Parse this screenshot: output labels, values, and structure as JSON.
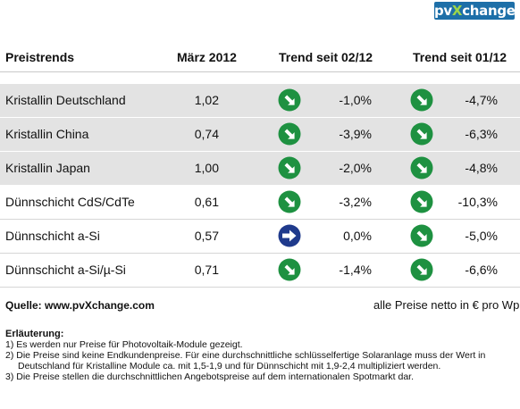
{
  "brand": {
    "logo_pre": "pv",
    "logo_x": "X",
    "logo_post": "change"
  },
  "header": {
    "col_name": "Preistrends",
    "col_price": "März 2012",
    "col_trend1": "Trend seit 02/12",
    "col_trend2": "Trend seit 01/12"
  },
  "rows": [
    {
      "name": "Kristallin Deutschland",
      "price": "1,02",
      "trend1_icon": "arrow-down-right-icon",
      "trend1": "-1,0%",
      "trend2_icon": "arrow-down-right-icon",
      "trend2": "-4,7%"
    },
    {
      "name": "Kristallin China",
      "price": "0,74",
      "trend1_icon": "arrow-down-right-icon",
      "trend1": "-3,9%",
      "trend2_icon": "arrow-down-right-icon",
      "trend2": "-6,3%"
    },
    {
      "name": "Kristallin Japan",
      "price": "1,00",
      "trend1_icon": "arrow-down-right-icon",
      "trend1": "-2,0%",
      "trend2_icon": "arrow-down-right-icon",
      "trend2": "-4,8%"
    },
    {
      "name": "Dünnschicht CdS/CdTe",
      "price": "0,61",
      "trend1_icon": "arrow-down-right-icon",
      "trend1": "-3,2%",
      "trend2_icon": "arrow-down-right-icon",
      "trend2": "-10,3%"
    },
    {
      "name": "Dünnschicht a-Si",
      "price": "0,57",
      "trend1_icon": "arrow-right-icon",
      "trend1": "0,0%",
      "trend2_icon": "arrow-down-right-icon",
      "trend2": "-5,0%"
    },
    {
      "name": "Dünnschicht a-Si/µ-Si",
      "price": "0,71",
      "trend1_icon": "arrow-down-right-icon",
      "trend1": "-1,4%",
      "trend2_icon": "arrow-down-right-icon",
      "trend2": "-6,6%"
    }
  ],
  "colors": {
    "down": "#1e9141",
    "flat": "#1f3a8c",
    "row_shade": "#e3e3e3",
    "logo_bg": "#1d6fa8",
    "logo_accent": "#9dd64a"
  },
  "footer": {
    "source": "Quelle: www.pvXchange.com",
    "unit": "alle Preise netto in € pro Wp",
    "notes_title": "Erläuterung:",
    "notes": [
      "1) Es werden nur Preise für Photovoltaik-Module gezeigt.",
      "2) Die Preise sind keine Endkundenpreise. Für eine durchschnittliche schlüsselfertige Solaranlage  muss der Wert in",
      "Deutschland für Kristalline Module ca. mit 1,5-1,9 und für Dünnschicht mit 1,9-2,4 multipliziert werden.",
      "3) Die Preise stellen die durchschnittlichen Angebotspreise auf dem internationalen Spotmarkt dar."
    ]
  }
}
